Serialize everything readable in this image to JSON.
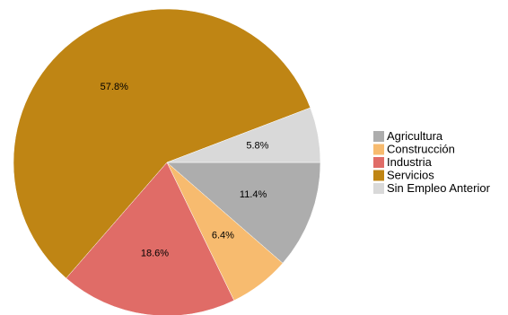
{
  "chart_data": {
    "type": "pie",
    "title": "",
    "legend_position": "right",
    "start_angle_deg": 0,
    "direction": "clockwise",
    "slices": [
      {
        "label": "Agricultura",
        "value": 11.4,
        "pct_label": "11.4%",
        "color": "#adadad"
      },
      {
        "label": "Construcción",
        "value": 6.4,
        "pct_label": "6.4%",
        "color": "#f7bb6f"
      },
      {
        "label": "Industria",
        "value": 18.6,
        "pct_label": "18.6%",
        "color": "#e06c67"
      },
      {
        "label": "Servicios",
        "value": 57.8,
        "pct_label": "57.8%",
        "color": "#bf8514"
      },
      {
        "label": "Sin Empleo Anterior",
        "value": 5.8,
        "pct_label": "5.8%",
        "color": "#d9d9d9"
      }
    ]
  }
}
